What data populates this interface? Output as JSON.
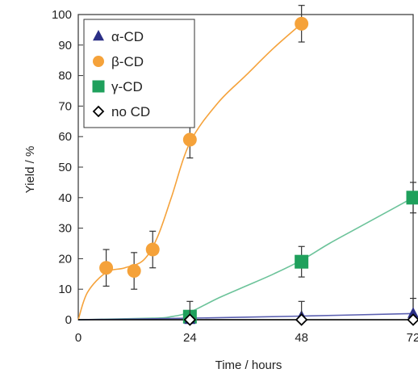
{
  "chart_data": {
    "type": "scatter",
    "title": "",
    "xlabel": "Time / hours",
    "ylabel": "Yield / %",
    "xlim": [
      0,
      72
    ],
    "ylim": [
      0,
      100
    ],
    "x_ticks": [
      0,
      24,
      48,
      72
    ],
    "y_ticks": [
      0,
      10,
      20,
      30,
      40,
      50,
      60,
      70,
      80,
      90,
      100
    ],
    "grid": false,
    "legend_position": "top-left",
    "series": [
      {
        "name": "α-CD",
        "marker": "triangle",
        "color": "#2b2f86",
        "line_color": "#5a5fb0",
        "points": [
          {
            "x": 24,
            "y": 0,
            "err": 0
          },
          {
            "x": 48,
            "y": 1,
            "err": 0
          },
          {
            "x": 72,
            "y": 2,
            "err": 5
          }
        ],
        "curve": [
          [
            0,
            0
          ],
          [
            24,
            0.5
          ],
          [
            48,
            1.2
          ],
          [
            72,
            2
          ]
        ]
      },
      {
        "name": "β-CD",
        "marker": "circle",
        "color": "#f5a23a",
        "line_color": "#f5a23a",
        "points": [
          {
            "x": 6,
            "y": 17,
            "err": 6
          },
          {
            "x": 12,
            "y": 16,
            "err": 6
          },
          {
            "x": 16,
            "y": 23,
            "err": 6
          },
          {
            "x": 24,
            "y": 59,
            "err": 6
          },
          {
            "x": 48,
            "y": 97,
            "err": 6
          }
        ],
        "curve": [
          [
            0,
            0
          ],
          [
            2,
            9
          ],
          [
            6,
            15.5
          ],
          [
            10,
            17
          ],
          [
            14,
            19.5
          ],
          [
            17,
            27
          ],
          [
            20,
            40
          ],
          [
            24,
            58
          ],
          [
            30,
            71
          ],
          [
            36,
            80
          ],
          [
            42,
            89
          ],
          [
            48,
            97
          ]
        ]
      },
      {
        "name": "γ-CD",
        "marker": "square",
        "color": "#1fa05c",
        "line_color": "#6cc39a",
        "points": [
          {
            "x": 24,
            "y": 1,
            "err": 0
          },
          {
            "x": 48,
            "y": 19,
            "err": 5
          },
          {
            "x": 72,
            "y": 40,
            "err": 5
          }
        ],
        "curve": [
          [
            0,
            0
          ],
          [
            16,
            0.5
          ],
          [
            20,
            1
          ],
          [
            24,
            2.5
          ],
          [
            30,
            7
          ],
          [
            36,
            11
          ],
          [
            42,
            15
          ],
          [
            48,
            19.5
          ],
          [
            54,
            25
          ],
          [
            60,
            30
          ],
          [
            66,
            35
          ],
          [
            72,
            40
          ]
        ]
      },
      {
        "name": "no CD",
        "marker": "diamond",
        "color": "#000000",
        "line_color": "#000000",
        "points": [
          {
            "x": 24,
            "y": 0,
            "err": 6
          },
          {
            "x": 48,
            "y": 0,
            "err": 6
          },
          {
            "x": 72,
            "y": 0,
            "err": 0
          }
        ],
        "curve": [
          [
            0,
            0
          ],
          [
            72,
            0
          ]
        ]
      }
    ]
  }
}
